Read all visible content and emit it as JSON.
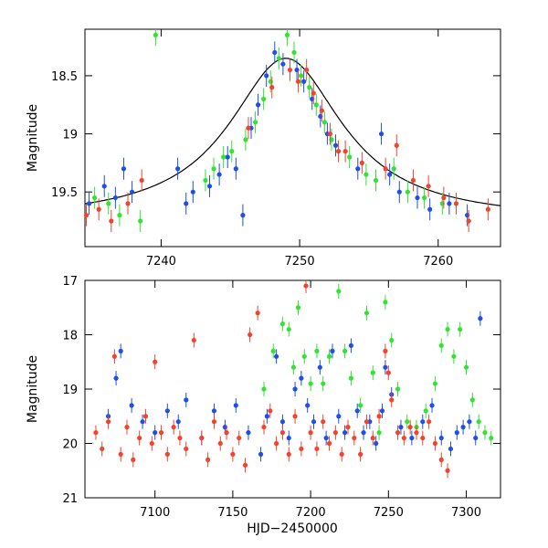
{
  "colors": {
    "blue": "#1f4ee8",
    "green": "#33e233",
    "red": "#f0442f",
    "model": "#000000"
  },
  "chart_data": [
    {
      "type": "scatter",
      "title": "",
      "xlabel": "",
      "ylabel": "Magnitude",
      "xlim": [
        7234.5,
        7264.5
      ],
      "ylim": [
        19.97,
        18.1
      ],
      "xticks": [
        7240,
        7250,
        7260
      ],
      "xtick_labels": [
        "7240",
        "7250",
        "7260"
      ],
      "yticks": [
        18.5,
        19,
        19.5
      ],
      "ytick_labels": [
        "18.5",
        "19",
        "19.5"
      ],
      "model_curve": {
        "type": "lorentzian-like",
        "peak_x": 7249.0,
        "peak_mag": 18.35,
        "baseline_mag": 19.75,
        "halfwidth_days": 5.0
      },
      "series": [
        {
          "name": "blue",
          "color": "blue",
          "points": [
            [
              7234.8,
              19.6
            ],
            [
              7235.9,
              19.45
            ],
            [
              7236.7,
              19.55
            ],
            [
              7237.3,
              19.3
            ],
            [
              7237.9,
              19.5
            ],
            [
              7241.2,
              19.3
            ],
            [
              7241.8,
              19.6
            ],
            [
              7242.3,
              19.5
            ],
            [
              7243.5,
              19.45
            ],
            [
              7244.2,
              19.35
            ],
            [
              7244.8,
              19.2
            ],
            [
              7245.4,
              19.3
            ],
            [
              7245.9,
              19.7
            ],
            [
              7246.5,
              18.95
            ],
            [
              7247.0,
              18.75
            ],
            [
              7247.6,
              18.5
            ],
            [
              7248.2,
              18.3
            ],
            [
              7248.8,
              18.4
            ],
            [
              7249.8,
              18.45
            ],
            [
              7250.3,
              18.55
            ],
            [
              7250.9,
              18.7
            ],
            [
              7251.5,
              18.85
            ],
            [
              7252.0,
              19.0
            ],
            [
              7252.6,
              19.1
            ],
            [
              7254.2,
              19.3
            ],
            [
              7255.9,
              19.0
            ],
            [
              7256.5,
              19.35
            ],
            [
              7257.2,
              19.5
            ],
            [
              7258.5,
              19.55
            ],
            [
              7259.4,
              19.65
            ],
            [
              7260.8,
              19.6
            ],
            [
              7262.1,
              19.7
            ]
          ]
        },
        {
          "name": "green",
          "color": "green",
          "points": [
            [
              7235.2,
              19.55
            ],
            [
              7236.2,
              19.6
            ],
            [
              7237.0,
              19.7
            ],
            [
              7238.5,
              19.75
            ],
            [
              7239.6,
              18.15
            ],
            [
              7243.2,
              19.4
            ],
            [
              7243.8,
              19.3
            ],
            [
              7244.5,
              19.2
            ],
            [
              7245.1,
              19.15
            ],
            [
              7246.1,
              19.05
            ],
            [
              7246.8,
              18.9
            ],
            [
              7247.4,
              18.7
            ],
            [
              7247.9,
              18.55
            ],
            [
              7248.5,
              18.35
            ],
            [
              7249.1,
              18.15
            ],
            [
              7249.6,
              18.3
            ],
            [
              7250.1,
              18.5
            ],
            [
              7250.7,
              18.6
            ],
            [
              7251.2,
              18.75
            ],
            [
              7251.8,
              18.9
            ],
            [
              7252.3,
              19.05
            ],
            [
              7253.6,
              19.2
            ],
            [
              7254.8,
              19.35
            ],
            [
              7255.5,
              19.4
            ],
            [
              7256.8,
              19.3
            ],
            [
              7257.8,
              19.5
            ],
            [
              7259.0,
              19.55
            ],
            [
              7260.3,
              19.6
            ]
          ]
        },
        {
          "name": "red",
          "color": "red",
          "points": [
            [
              7234.6,
              19.7
            ],
            [
              7235.5,
              19.65
            ],
            [
              7236.4,
              19.75
            ],
            [
              7237.6,
              19.6
            ],
            [
              7238.6,
              19.4
            ],
            [
              7246.3,
              18.95
            ],
            [
              7248.0,
              18.6
            ],
            [
              7249.3,
              18.45
            ],
            [
              7249.9,
              18.55
            ],
            [
              7250.5,
              18.45
            ],
            [
              7251.0,
              18.65
            ],
            [
              7251.6,
              18.8
            ],
            [
              7252.2,
              19.0
            ],
            [
              7252.8,
              19.15
            ],
            [
              7253.3,
              19.15
            ],
            [
              7254.5,
              19.25
            ],
            [
              7256.2,
              19.3
            ],
            [
              7257.0,
              19.1
            ],
            [
              7258.2,
              19.4
            ],
            [
              7259.3,
              19.45
            ],
            [
              7260.4,
              19.55
            ],
            [
              7261.3,
              19.6
            ],
            [
              7262.2,
              19.75
            ],
            [
              7263.6,
              19.65
            ]
          ]
        }
      ]
    },
    {
      "type": "scatter",
      "title": "",
      "xlabel": "HJD−2450000",
      "ylabel": "Magnitude",
      "xlim": [
        7055,
        7322
      ],
      "ylim": [
        21,
        17
      ],
      "xticks": [
        7100,
        7150,
        7200,
        7250,
        7300
      ],
      "xtick_labels": [
        "7100",
        "7150",
        "7200",
        "7250",
        "7300"
      ],
      "yticks": [
        17,
        18,
        19,
        20,
        21
      ],
      "ytick_labels": [
        "17",
        "18",
        "19",
        "20",
        "21"
      ],
      "series": [
        {
          "name": "blue",
          "color": "blue",
          "points": [
            [
              7070,
              19.5
            ],
            [
              7075,
              18.8
            ],
            [
              7078,
              18.3
            ],
            [
              7085,
              19.3
            ],
            [
              7092,
              19.6
            ],
            [
              7100,
              19.8
            ],
            [
              7108,
              19.4
            ],
            [
              7115,
              19.6
            ],
            [
              7120,
              19.2
            ],
            [
              7130,
              19.9
            ],
            [
              7138,
              19.4
            ],
            [
              7145,
              19.7
            ],
            [
              7152,
              19.3
            ],
            [
              7160,
              19.8
            ],
            [
              7168,
              20.2
            ],
            [
              7172,
              19.5
            ],
            [
              7178,
              18.4
            ],
            [
              7182,
              19.6
            ],
            [
              7186,
              19.9
            ],
            [
              7190,
              19.0
            ],
            [
              7194,
              18.8
            ],
            [
              7198,
              19.3
            ],
            [
              7202,
              19.6
            ],
            [
              7206,
              18.6
            ],
            [
              7210,
              19.9
            ],
            [
              7214,
              18.3
            ],
            [
              7218,
              19.5
            ],
            [
              7222,
              19.8
            ],
            [
              7226,
              18.2
            ],
            [
              7230,
              19.4
            ],
            [
              7234,
              19.8
            ],
            [
              7238,
              19.6
            ],
            [
              7242,
              20.0
            ],
            [
              7246,
              19.4
            ],
            [
              7248,
              18.6
            ],
            [
              7252,
              19.1
            ],
            [
              7258,
              19.7
            ],
            [
              7265,
              19.9
            ],
            [
              7272,
              19.6
            ],
            [
              7278,
              19.3
            ],
            [
              7284,
              19.9
            ],
            [
              7290,
              20.1
            ],
            [
              7294,
              19.8
            ],
            [
              7298,
              19.7
            ],
            [
              7302,
              19.6
            ],
            [
              7306,
              19.9
            ],
            [
              7309,
              17.7
            ]
          ]
        },
        {
          "name": "green",
          "color": "green",
          "points": [
            [
              7170,
              19.0
            ],
            [
              7176,
              18.3
            ],
            [
              7182,
              17.8
            ],
            [
              7186,
              17.9
            ],
            [
              7189,
              18.6
            ],
            [
              7192,
              17.5
            ],
            [
              7196,
              18.4
            ],
            [
              7200,
              18.9
            ],
            [
              7204,
              18.3
            ],
            [
              7208,
              18.9
            ],
            [
              7212,
              18.4
            ],
            [
              7218,
              17.2
            ],
            [
              7222,
              18.3
            ],
            [
              7226,
              18.8
            ],
            [
              7232,
              19.3
            ],
            [
              7236,
              17.6
            ],
            [
              7240,
              18.7
            ],
            [
              7244,
              19.8
            ],
            [
              7248,
              17.4
            ],
            [
              7252,
              18.1
            ],
            [
              7256,
              19.0
            ],
            [
              7262,
              19.6
            ],
            [
              7268,
              19.7
            ],
            [
              7274,
              19.4
            ],
            [
              7280,
              18.9
            ],
            [
              7284,
              18.2
            ],
            [
              7288,
              17.9
            ],
            [
              7292,
              18.4
            ],
            [
              7296,
              17.9
            ],
            [
              7300,
              18.6
            ],
            [
              7304,
              19.2
            ],
            [
              7308,
              19.6
            ],
            [
              7312,
              19.8
            ],
            [
              7316,
              19.9
            ]
          ]
        },
        {
          "name": "red",
          "color": "red",
          "points": [
            [
              7062,
              19.8
            ],
            [
              7066,
              20.1
            ],
            [
              7070,
              19.6
            ],
            [
              7074,
              18.4
            ],
            [
              7078,
              20.2
            ],
            [
              7082,
              19.7
            ],
            [
              7086,
              20.3
            ],
            [
              7090,
              19.9
            ],
            [
              7094,
              19.5
            ],
            [
              7098,
              20.0
            ],
            [
              7100,
              18.5
            ],
            [
              7104,
              19.8
            ],
            [
              7108,
              20.2
            ],
            [
              7112,
              19.7
            ],
            [
              7116,
              19.9
            ],
            [
              7120,
              20.1
            ],
            [
              7125,
              18.1
            ],
            [
              7130,
              19.9
            ],
            [
              7134,
              20.3
            ],
            [
              7138,
              19.6
            ],
            [
              7142,
              20.0
            ],
            [
              7146,
              19.8
            ],
            [
              7150,
              20.2
            ],
            [
              7154,
              19.9
            ],
            [
              7158,
              20.4
            ],
            [
              7161,
              18.0
            ],
            [
              7166,
              17.6
            ],
            [
              7170,
              19.7
            ],
            [
              7174,
              19.4
            ],
            [
              7178,
              20.0
            ],
            [
              7182,
              19.8
            ],
            [
              7186,
              20.2
            ],
            [
              7190,
              19.5
            ],
            [
              7194,
              20.1
            ],
            [
              7197,
              17.1
            ],
            [
              7200,
              19.8
            ],
            [
              7204,
              20.1
            ],
            [
              7208,
              19.6
            ],
            [
              7212,
              20.0
            ],
            [
              7216,
              19.8
            ],
            [
              7220,
              20.2
            ],
            [
              7224,
              19.7
            ],
            [
              7228,
              19.9
            ],
            [
              7232,
              20.2
            ],
            [
              7236,
              19.6
            ],
            [
              7240,
              19.9
            ],
            [
              7244,
              19.5
            ],
            [
              7248,
              18.3
            ],
            [
              7250,
              18.7
            ],
            [
              7252,
              19.2
            ],
            [
              7256,
              19.8
            ],
            [
              7260,
              19.9
            ],
            [
              7264,
              19.7
            ],
            [
              7268,
              19.8
            ],
            [
              7272,
              19.9
            ],
            [
              7276,
              19.6
            ],
            [
              7280,
              20.0
            ],
            [
              7284,
              20.3
            ],
            [
              7288,
              20.5
            ]
          ]
        }
      ]
    }
  ]
}
